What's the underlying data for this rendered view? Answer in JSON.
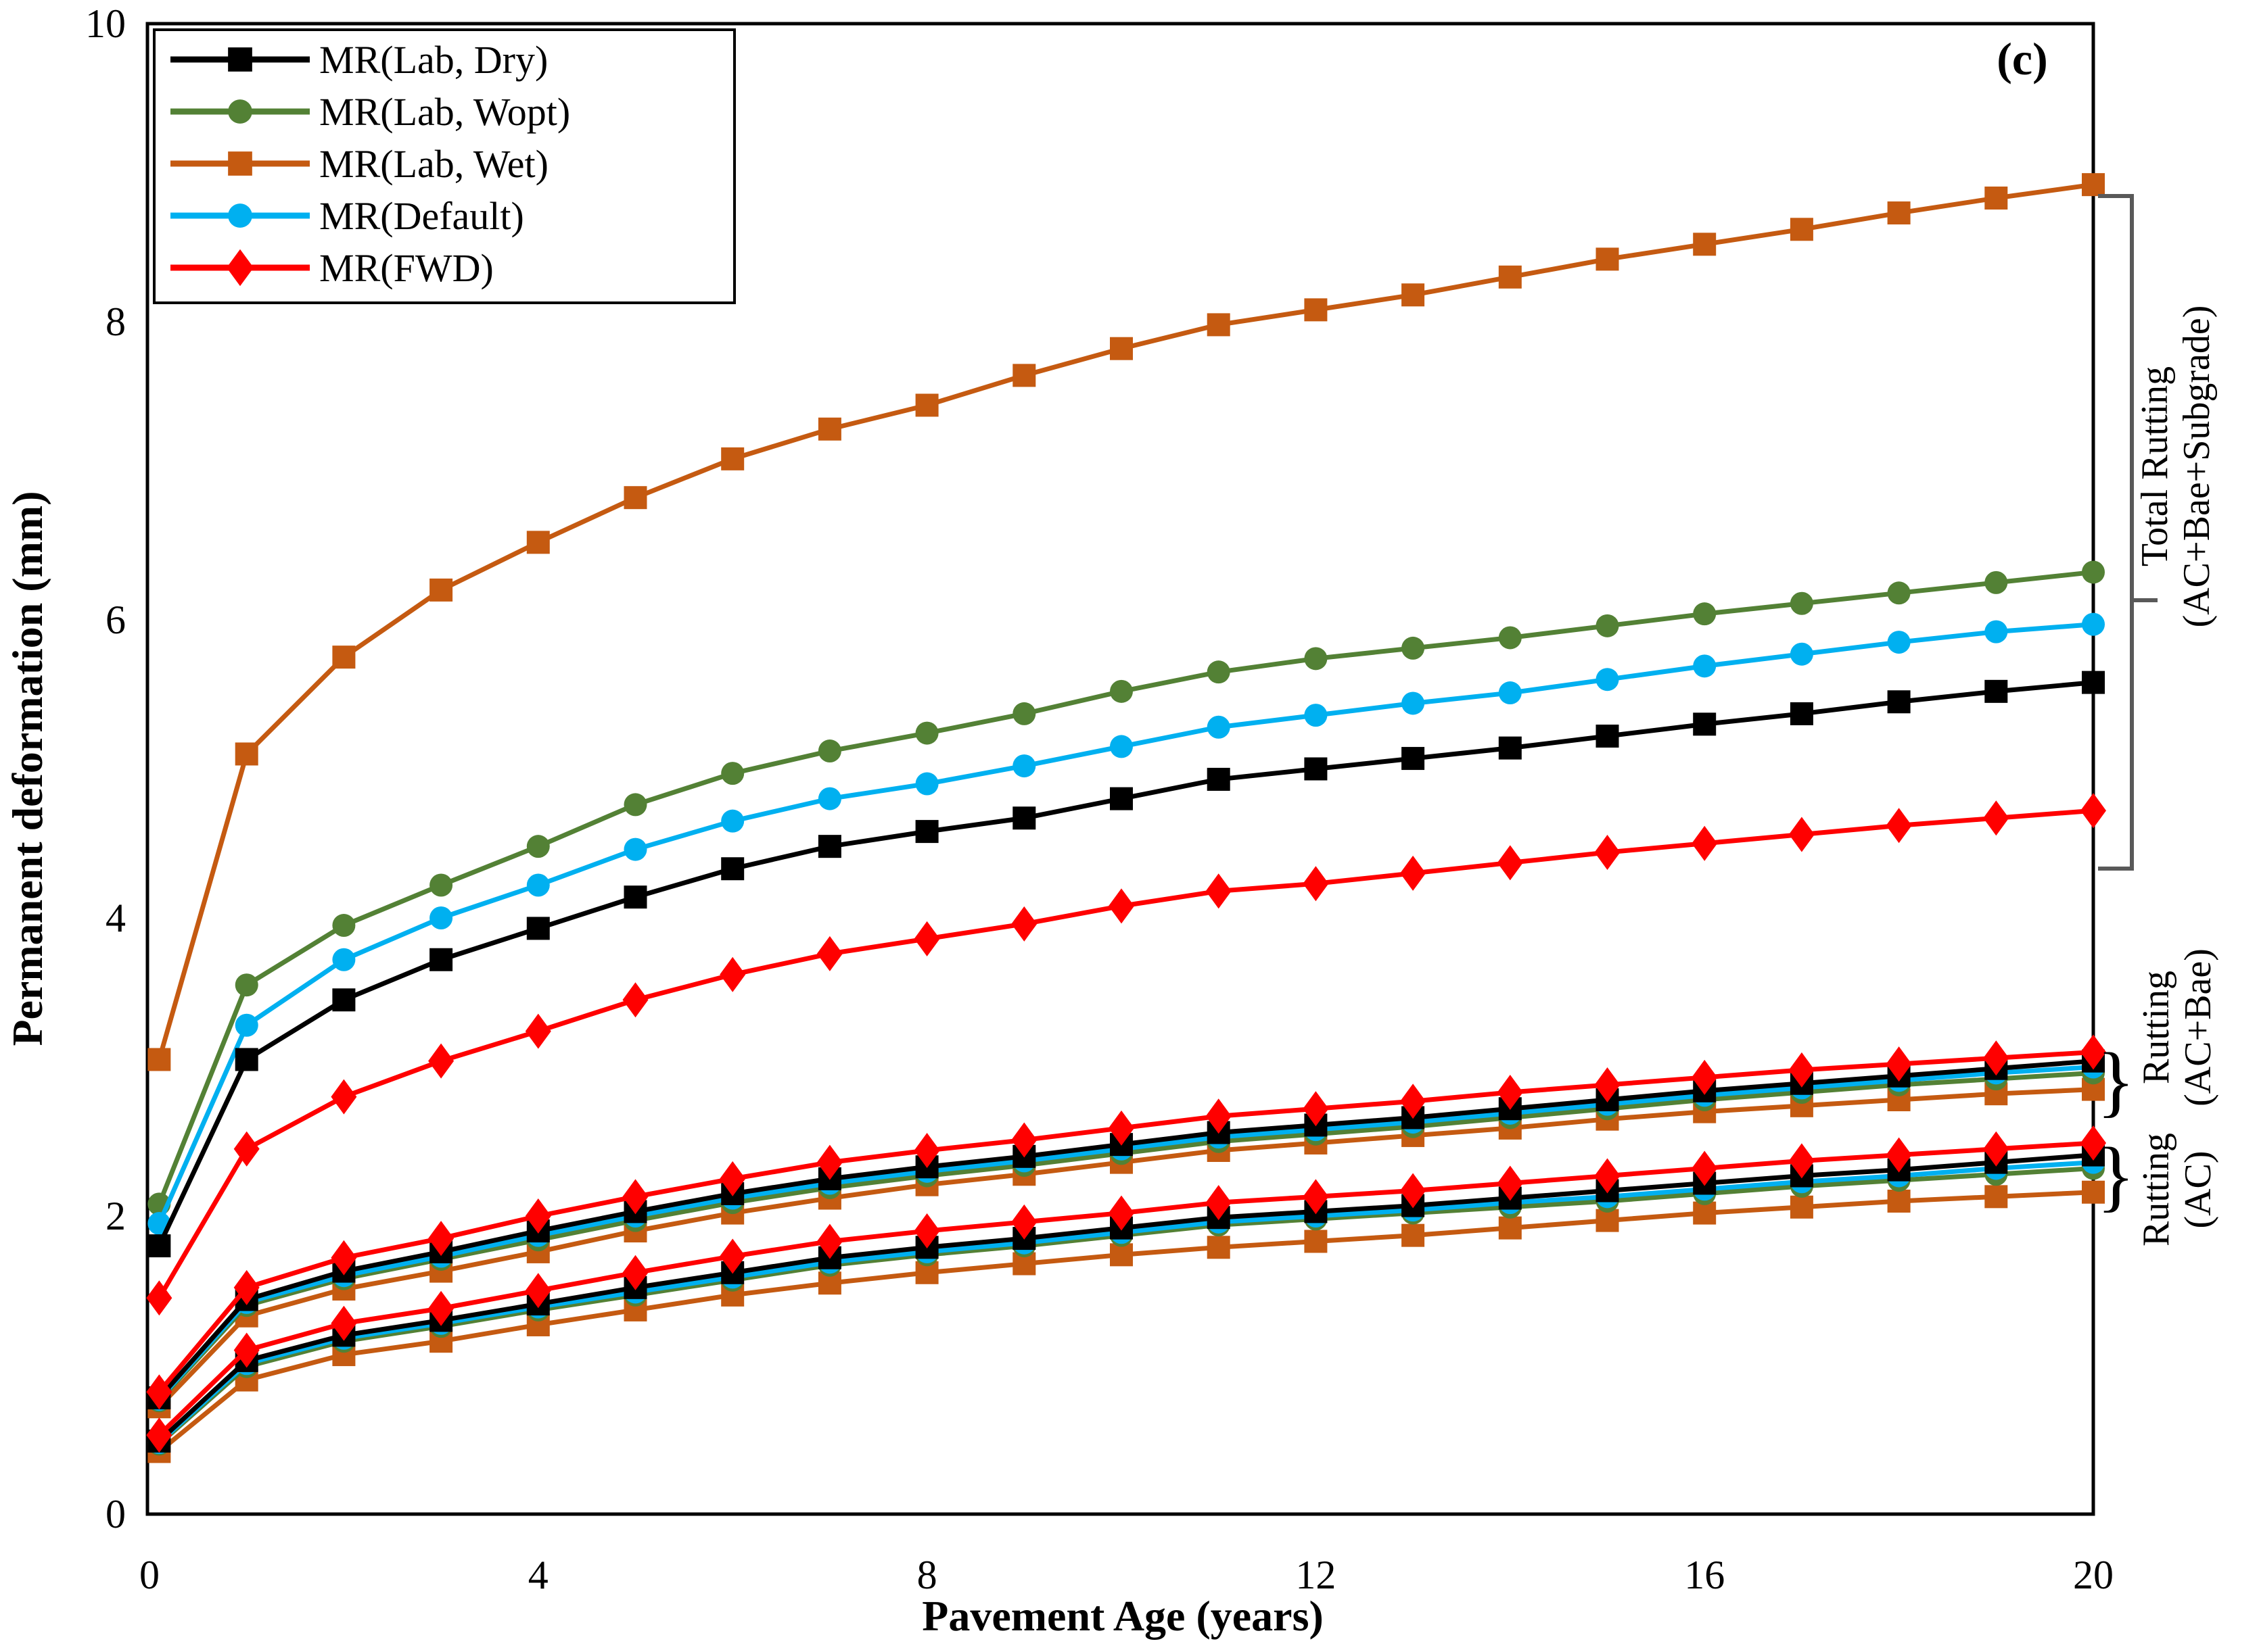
{
  "figure": {
    "panel_label": "(c)"
  },
  "colors": {
    "black": "#000000",
    "green": "#538135",
    "brown": "#C55A11",
    "blue": "#00B0F0",
    "red": "#FF0000",
    "bracket_gray": "#595959",
    "frame": "#000000"
  },
  "legend": {
    "entries": [
      {
        "label": "MR(Lab, Dry)",
        "color": "#000000",
        "marker": "square"
      },
      {
        "label": "MR(Lab, Wopt)",
        "color": "#538135",
        "marker": "circle"
      },
      {
        "label": "MR(Lab, Wet)",
        "color": "#C55A11",
        "marker": "square"
      },
      {
        "label": "MR(Default)",
        "color": "#00B0F0",
        "marker": "circle"
      },
      {
        "label": "MR(FWD)",
        "color": "#FF0000",
        "marker": "diamond"
      }
    ]
  },
  "annotations": {
    "brace_glyph": "}",
    "total": {
      "lines": [
        "Total Rutting",
        "(AC+Bae+Subgrade)"
      ]
    },
    "base": {
      "lines": [
        "Rutting",
        "(AC+Bae)"
      ]
    },
    "ac": {
      "lines": [
        "Rutting",
        "(AC)"
      ]
    }
  },
  "chart_data": {
    "type": "line",
    "title": "(c)",
    "xlabel": "Pavement Age (years)",
    "ylabel": "Permanent deformation (mm)",
    "xlim": [
      0,
      20
    ],
    "ylim": [
      0,
      10
    ],
    "xticks": [
      "0",
      "4",
      "8",
      "12",
      "16",
      "20"
    ],
    "yticks": [
      "0",
      "2",
      "4",
      "6",
      "8",
      "10"
    ],
    "grid": false,
    "legend_position": "top-left",
    "x": [
      0.1,
      1,
      2,
      3,
      4,
      5,
      6,
      7,
      8,
      9,
      10,
      11,
      12,
      13,
      14,
      15,
      16,
      17,
      18,
      19,
      20
    ],
    "series": [
      {
        "group": "Total Rutting (AC+Bae+Subgrade)",
        "name": "MR(Lab, Wet)",
        "color": "#C55A11",
        "marker": "square",
        "values": [
          3.05,
          5.1,
          5.75,
          6.2,
          6.52,
          6.82,
          7.08,
          7.28,
          7.44,
          7.64,
          7.82,
          7.98,
          8.08,
          8.18,
          8.3,
          8.42,
          8.52,
          8.62,
          8.73,
          8.83,
          8.92
        ]
      },
      {
        "group": "Total Rutting (AC+Bae+Subgrade)",
        "name": "MR(Lab, Wopt)",
        "color": "#538135",
        "marker": "circle",
        "values": [
          2.08,
          3.55,
          3.95,
          4.22,
          4.48,
          4.76,
          4.97,
          5.12,
          5.24,
          5.37,
          5.52,
          5.65,
          5.74,
          5.81,
          5.88,
          5.96,
          6.04,
          6.11,
          6.18,
          6.25,
          6.32
        ]
      },
      {
        "group": "Total Rutting (AC+Bae+Subgrade)",
        "name": "MR(Default)",
        "color": "#00B0F0",
        "marker": "circle",
        "values": [
          1.95,
          3.28,
          3.72,
          4.0,
          4.22,
          4.46,
          4.65,
          4.8,
          4.9,
          5.02,
          5.15,
          5.28,
          5.36,
          5.44,
          5.51,
          5.6,
          5.69,
          5.77,
          5.85,
          5.92,
          5.97
        ]
      },
      {
        "group": "Total Rutting (AC+Bae+Subgrade)",
        "name": "MR(Lab, Dry)",
        "color": "#000000",
        "marker": "square",
        "values": [
          1.8,
          3.05,
          3.45,
          3.72,
          3.93,
          4.14,
          4.33,
          4.48,
          4.58,
          4.67,
          4.8,
          4.93,
          5.0,
          5.07,
          5.14,
          5.22,
          5.3,
          5.37,
          5.45,
          5.52,
          5.58
        ]
      },
      {
        "group": "Total Rutting (AC+Bae+Subgrade)",
        "name": "MR(FWD)",
        "color": "#FF0000",
        "marker": "diamond",
        "values": [
          1.45,
          2.45,
          2.8,
          3.04,
          3.24,
          3.45,
          3.62,
          3.76,
          3.86,
          3.96,
          4.08,
          4.18,
          4.23,
          4.3,
          4.37,
          4.44,
          4.5,
          4.56,
          4.62,
          4.67,
          4.72
        ]
      },
      {
        "group": "Rutting (AC+Bae)",
        "name": "MR(Lab, Wet)",
        "color": "#C55A11",
        "marker": "square",
        "values": [
          0.72,
          1.33,
          1.51,
          1.63,
          1.76,
          1.9,
          2.02,
          2.12,
          2.21,
          2.28,
          2.36,
          2.44,
          2.49,
          2.54,
          2.59,
          2.65,
          2.7,
          2.74,
          2.78,
          2.82,
          2.85
        ]
      },
      {
        "group": "Rutting (AC+Bae)",
        "name": "MR(Lab, Wopt)",
        "color": "#538135",
        "marker": "circle",
        "values": [
          0.76,
          1.4,
          1.58,
          1.71,
          1.84,
          1.97,
          2.09,
          2.19,
          2.27,
          2.34,
          2.42,
          2.5,
          2.55,
          2.6,
          2.66,
          2.72,
          2.78,
          2.83,
          2.88,
          2.92,
          2.96
        ]
      },
      {
        "group": "Rutting (AC+Bae)",
        "name": "MR(Default)",
        "color": "#00B0F0",
        "marker": "circle",
        "values": [
          0.77,
          1.42,
          1.6,
          1.73,
          1.87,
          2.0,
          2.12,
          2.22,
          2.3,
          2.37,
          2.45,
          2.53,
          2.58,
          2.63,
          2.69,
          2.75,
          2.81,
          2.86,
          2.91,
          2.96,
          3.0
        ]
      },
      {
        "group": "Rutting (AC+Bae)",
        "name": "MR(Lab, Dry)",
        "color": "#000000",
        "marker": "square",
        "values": [
          0.78,
          1.44,
          1.63,
          1.76,
          1.9,
          2.03,
          2.15,
          2.25,
          2.33,
          2.4,
          2.48,
          2.56,
          2.61,
          2.66,
          2.72,
          2.78,
          2.84,
          2.89,
          2.94,
          2.99,
          3.04
        ]
      },
      {
        "group": "Rutting (AC+Bae)",
        "name": "MR(FWD)",
        "color": "#FF0000",
        "marker": "diamond",
        "values": [
          0.82,
          1.52,
          1.72,
          1.85,
          2.0,
          2.13,
          2.25,
          2.36,
          2.44,
          2.51,
          2.59,
          2.67,
          2.72,
          2.77,
          2.83,
          2.88,
          2.93,
          2.98,
          3.02,
          3.06,
          3.1
        ]
      },
      {
        "group": "Rutting (AC)",
        "name": "MR(Lab, Wet)",
        "color": "#C55A11",
        "marker": "square",
        "values": [
          0.42,
          0.9,
          1.07,
          1.16,
          1.27,
          1.37,
          1.47,
          1.55,
          1.62,
          1.68,
          1.74,
          1.79,
          1.83,
          1.87,
          1.92,
          1.97,
          2.02,
          2.06,
          2.1,
          2.13,
          2.16
        ]
      },
      {
        "group": "Rutting (AC)",
        "name": "MR(Lab, Wopt)",
        "color": "#538135",
        "marker": "circle",
        "values": [
          0.47,
          0.99,
          1.16,
          1.26,
          1.37,
          1.47,
          1.57,
          1.67,
          1.74,
          1.8,
          1.87,
          1.94,
          1.98,
          2.02,
          2.06,
          2.1,
          2.15,
          2.2,
          2.24,
          2.28,
          2.32
        ]
      },
      {
        "group": "Rutting (AC)",
        "name": "MR(Default)",
        "color": "#00B0F0",
        "marker": "circle",
        "values": [
          0.48,
          1.01,
          1.18,
          1.28,
          1.39,
          1.49,
          1.59,
          1.69,
          1.76,
          1.82,
          1.89,
          1.96,
          2.0,
          2.04,
          2.09,
          2.13,
          2.18,
          2.23,
          2.27,
          2.32,
          2.36
        ]
      },
      {
        "group": "Rutting (AC)",
        "name": "MR(Lab, Dry)",
        "color": "#000000",
        "marker": "square",
        "values": [
          0.49,
          1.03,
          1.2,
          1.3,
          1.41,
          1.52,
          1.62,
          1.72,
          1.79,
          1.85,
          1.92,
          1.99,
          2.03,
          2.07,
          2.12,
          2.17,
          2.22,
          2.27,
          2.31,
          2.36,
          2.41
        ]
      },
      {
        "group": "Rutting (AC)",
        "name": "MR(FWD)",
        "color": "#FF0000",
        "marker": "diamond",
        "values": [
          0.53,
          1.1,
          1.28,
          1.38,
          1.5,
          1.62,
          1.73,
          1.83,
          1.9,
          1.96,
          2.02,
          2.09,
          2.13,
          2.17,
          2.22,
          2.27,
          2.32,
          2.37,
          2.41,
          2.45,
          2.49
        ]
      }
    ]
  }
}
